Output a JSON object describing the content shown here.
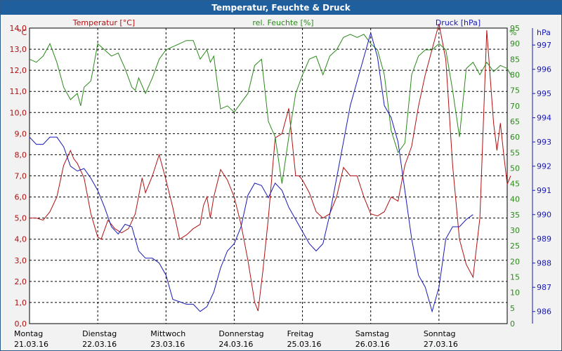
{
  "window": {
    "title": "Temperatur, Feuchte & Druck"
  },
  "colors": {
    "temp": "#b01010",
    "hum": "#2a8a1a",
    "press": "#1818b8",
    "grid": "#000000"
  },
  "chart_data": {
    "type": "line",
    "title": "Temperatur, Feuchte & Druck",
    "axes": {
      "temp": {
        "label": "Temperatur [°C]",
        "unit": "°C",
        "min": 0,
        "max": 14,
        "ticks": [
          "0,0",
          "1,0",
          "2,0",
          "3,0",
          "4,0",
          "5,0",
          "6,0",
          "7,0",
          "8,0",
          "9,0",
          "10,0",
          "11,0",
          "12,0",
          "13,0",
          "14,0"
        ]
      },
      "hum": {
        "label": "rel. Feuchte [%]",
        "unit": "%",
        "min": 0,
        "max": 95,
        "ticks": [
          "0",
          "5",
          "10",
          "15",
          "20",
          "25",
          "30",
          "35",
          "40",
          "45",
          "50",
          "55",
          "60",
          "65",
          "70",
          "75",
          "80",
          "85",
          "90",
          "95"
        ]
      },
      "press": {
        "label": "Druck [hPa]",
        "unit": "hPa",
        "min": 985.5,
        "max": 997.7,
        "ticks": [
          "986",
          "987",
          "988",
          "989",
          "990",
          "991",
          "992",
          "993",
          "994",
          "995",
          "996",
          "997"
        ]
      }
    },
    "x_range": [
      0,
      7.0
    ],
    "days": [
      {
        "name": "Montag",
        "date": "21.03.16"
      },
      {
        "name": "Dienstag",
        "date": "22.03.16"
      },
      {
        "name": "Mittwoch",
        "date": "23.03.16"
      },
      {
        "name": "Donnerstag",
        "date": "24.03.16"
      },
      {
        "name": "Freitag",
        "date": "25.03.16"
      },
      {
        "name": "Samstag",
        "date": "26.03.16"
      },
      {
        "name": "Sonntag",
        "date": "27.03.16"
      }
    ],
    "series": [
      {
        "name": "Temperatur",
        "axis": "temp",
        "points": [
          [
            0.0,
            5.0
          ],
          [
            0.1,
            5.0
          ],
          [
            0.2,
            4.9
          ],
          [
            0.3,
            5.3
          ],
          [
            0.4,
            6.0
          ],
          [
            0.5,
            7.5
          ],
          [
            0.6,
            8.2
          ],
          [
            0.65,
            7.8
          ],
          [
            0.7,
            7.6
          ],
          [
            0.8,
            6.9
          ],
          [
            0.9,
            5.2
          ],
          [
            1.0,
            4.1
          ],
          [
            1.05,
            4.0
          ],
          [
            1.15,
            4.9
          ],
          [
            1.25,
            4.5
          ],
          [
            1.35,
            4.3
          ],
          [
            1.45,
            4.5
          ],
          [
            1.55,
            5.2
          ],
          [
            1.65,
            6.9
          ],
          [
            1.7,
            6.2
          ],
          [
            1.8,
            7.0
          ],
          [
            1.9,
            8.0
          ],
          [
            2.0,
            6.8
          ],
          [
            2.1,
            5.5
          ],
          [
            2.2,
            4.0
          ],
          [
            2.3,
            4.2
          ],
          [
            2.4,
            4.5
          ],
          [
            2.5,
            4.7
          ],
          [
            2.55,
            5.6
          ],
          [
            2.6,
            6.0
          ],
          [
            2.65,
            5.0
          ],
          [
            2.7,
            6.0
          ],
          [
            2.8,
            7.3
          ],
          [
            2.9,
            6.8
          ],
          [
            3.0,
            6.0
          ],
          [
            3.1,
            4.7
          ],
          [
            3.2,
            3.0
          ],
          [
            3.3,
            1.0
          ],
          [
            3.35,
            0.6
          ],
          [
            3.42,
            2.5
          ],
          [
            3.5,
            5.0
          ],
          [
            3.6,
            8.8
          ],
          [
            3.7,
            9.0
          ],
          [
            3.8,
            10.2
          ],
          [
            3.9,
            7.0
          ],
          [
            3.95,
            7.0
          ],
          [
            4.0,
            6.8
          ],
          [
            4.1,
            6.2
          ],
          [
            4.2,
            5.3
          ],
          [
            4.3,
            5.0
          ],
          [
            4.4,
            5.2
          ],
          [
            4.5,
            6.0
          ],
          [
            4.6,
            7.4
          ],
          [
            4.7,
            7.0
          ],
          [
            4.8,
            7.0
          ],
          [
            4.9,
            6.0
          ],
          [
            5.0,
            5.2
          ],
          [
            5.1,
            5.1
          ],
          [
            5.2,
            5.3
          ],
          [
            5.3,
            6.0
          ],
          [
            5.4,
            5.8
          ],
          [
            5.5,
            7.5
          ],
          [
            5.6,
            8.4
          ],
          [
            5.7,
            10.3
          ],
          [
            5.8,
            11.8
          ],
          [
            5.9,
            13.0
          ],
          [
            6.0,
            14.2
          ],
          [
            6.1,
            12.5
          ],
          [
            6.2,
            7.5
          ],
          [
            6.3,
            4.0
          ],
          [
            6.4,
            2.8
          ],
          [
            6.5,
            2.2
          ],
          [
            6.6,
            5.0
          ],
          [
            6.7,
            13.9
          ],
          [
            6.8,
            9.5
          ],
          [
            6.85,
            8.2
          ],
          [
            6.9,
            9.5
          ],
          [
            6.95,
            8.0
          ],
          [
            7.0,
            6.6
          ],
          [
            7.05,
            7.0
          ]
        ]
      },
      {
        "name": "rel. Feuchte",
        "axis": "hum",
        "points": [
          [
            0.0,
            85.0
          ],
          [
            0.1,
            84.0
          ],
          [
            0.2,
            86.0
          ],
          [
            0.3,
            90.0
          ],
          [
            0.4,
            84.0
          ],
          [
            0.5,
            76.0
          ],
          [
            0.6,
            72.0
          ],
          [
            0.7,
            74.0
          ],
          [
            0.75,
            70.0
          ],
          [
            0.8,
            76.0
          ],
          [
            0.9,
            78.0
          ],
          [
            1.0,
            90.0
          ],
          [
            1.1,
            88.0
          ],
          [
            1.2,
            86.0
          ],
          [
            1.3,
            87.0
          ],
          [
            1.4,
            82.0
          ],
          [
            1.5,
            76.0
          ],
          [
            1.55,
            75.0
          ],
          [
            1.6,
            79.0
          ],
          [
            1.7,
            74.0
          ],
          [
            1.8,
            79.0
          ],
          [
            1.9,
            85.0
          ],
          [
            2.0,
            88.0
          ],
          [
            2.1,
            89.0
          ],
          [
            2.2,
            90.0
          ],
          [
            2.3,
            91.0
          ],
          [
            2.4,
            91.0
          ],
          [
            2.5,
            85.0
          ],
          [
            2.6,
            88.0
          ],
          [
            2.65,
            84.0
          ],
          [
            2.7,
            86.0
          ],
          [
            2.8,
            69.0
          ],
          [
            2.9,
            70.0
          ],
          [
            3.0,
            68.0
          ],
          [
            3.1,
            71.0
          ],
          [
            3.2,
            74.0
          ],
          [
            3.3,
            83.0
          ],
          [
            3.4,
            85.0
          ],
          [
            3.5,
            65.0
          ],
          [
            3.6,
            60.0
          ],
          [
            3.7,
            45.0
          ],
          [
            3.8,
            60.0
          ],
          [
            3.9,
            74.0
          ],
          [
            4.0,
            80.0
          ],
          [
            4.1,
            85.0
          ],
          [
            4.2,
            86.0
          ],
          [
            4.3,
            80.0
          ],
          [
            4.4,
            86.0
          ],
          [
            4.5,
            88.0
          ],
          [
            4.6,
            92.0
          ],
          [
            4.7,
            93.0
          ],
          [
            4.8,
            92.0
          ],
          [
            4.9,
            93.0
          ],
          [
            5.0,
            90.0
          ],
          [
            5.1,
            88.0
          ],
          [
            5.2,
            80.0
          ],
          [
            5.3,
            62.0
          ],
          [
            5.4,
            55.0
          ],
          [
            5.5,
            58.0
          ],
          [
            5.6,
            80.0
          ],
          [
            5.7,
            86.0
          ],
          [
            5.8,
            88.0
          ],
          [
            5.9,
            88.0
          ],
          [
            6.0,
            90.0
          ],
          [
            6.1,
            88.0
          ],
          [
            6.2,
            75.0
          ],
          [
            6.3,
            60.0
          ],
          [
            6.4,
            82.0
          ],
          [
            6.5,
            84.0
          ],
          [
            6.6,
            80.0
          ],
          [
            6.7,
            84.0
          ],
          [
            6.8,
            81.0
          ],
          [
            6.9,
            83.0
          ],
          [
            7.0,
            82.0
          ],
          [
            7.05,
            80.0
          ]
        ]
      },
      {
        "name": "Druck",
        "axis": "press",
        "points": [
          [
            0.0,
            993.2
          ],
          [
            0.1,
            992.9
          ],
          [
            0.2,
            992.9
          ],
          [
            0.3,
            993.2
          ],
          [
            0.4,
            993.2
          ],
          [
            0.5,
            992.8
          ],
          [
            0.6,
            992.0
          ],
          [
            0.7,
            991.8
          ],
          [
            0.8,
            991.9
          ],
          [
            0.9,
            991.5
          ],
          [
            1.0,
            991.0
          ],
          [
            1.1,
            990.3
          ],
          [
            1.2,
            989.5
          ],
          [
            1.3,
            989.2
          ],
          [
            1.4,
            989.6
          ],
          [
            1.5,
            989.5
          ],
          [
            1.6,
            988.5
          ],
          [
            1.7,
            988.2
          ],
          [
            1.8,
            988.2
          ],
          [
            1.9,
            988.0
          ],
          [
            2.0,
            987.5
          ],
          [
            2.1,
            986.5
          ],
          [
            2.2,
            986.4
          ],
          [
            2.3,
            986.3
          ],
          [
            2.4,
            986.3
          ],
          [
            2.5,
            986.0
          ],
          [
            2.6,
            986.2
          ],
          [
            2.7,
            986.8
          ],
          [
            2.8,
            987.8
          ],
          [
            2.9,
            988.5
          ],
          [
            3.0,
            988.8
          ],
          [
            3.1,
            989.5
          ],
          [
            3.2,
            990.8
          ],
          [
            3.3,
            991.3
          ],
          [
            3.4,
            991.2
          ],
          [
            3.5,
            990.7
          ],
          [
            3.6,
            991.3
          ],
          [
            3.7,
            991.0
          ],
          [
            3.8,
            990.3
          ],
          [
            3.9,
            989.8
          ],
          [
            4.0,
            989.3
          ],
          [
            4.1,
            988.8
          ],
          [
            4.2,
            988.5
          ],
          [
            4.3,
            988.8
          ],
          [
            4.4,
            990.0
          ],
          [
            4.5,
            991.5
          ],
          [
            4.6,
            993.0
          ],
          [
            4.7,
            994.5
          ],
          [
            4.8,
            995.5
          ],
          [
            4.9,
            996.5
          ],
          [
            5.0,
            997.5
          ],
          [
            5.1,
            996.5
          ],
          [
            5.2,
            994.5
          ],
          [
            5.3,
            994.0
          ],
          [
            5.4,
            993.0
          ],
          [
            5.5,
            991.0
          ],
          [
            5.6,
            989.0
          ],
          [
            5.7,
            987.5
          ],
          [
            5.8,
            987.0
          ],
          [
            5.9,
            986.0
          ],
          [
            6.0,
            987.0
          ],
          [
            6.1,
            989.0
          ],
          [
            6.2,
            989.5
          ],
          [
            6.3,
            989.5
          ],
          [
            6.4,
            989.8
          ],
          [
            6.5,
            990.0
          ]
        ]
      }
    ]
  }
}
